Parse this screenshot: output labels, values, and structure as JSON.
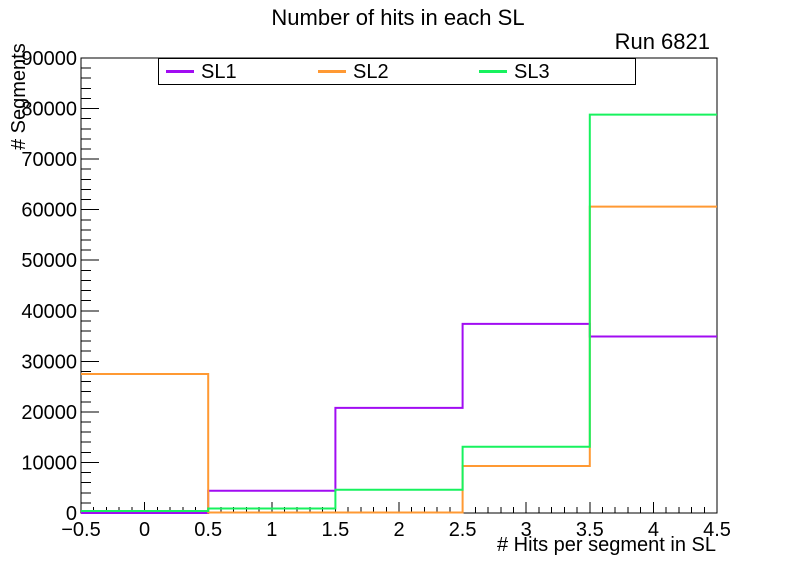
{
  "chart_data": {
    "type": "step-histogram",
    "title": "Number of hits in each SL",
    "annotation": "Run 6821",
    "xlabel": "# Hits per segment in SL",
    "ylabel": "# Segments",
    "xlim": [
      -0.5,
      4.5
    ],
    "ylim": [
      0,
      90000
    ],
    "grid": false,
    "legend_position": "top-inside",
    "bin_edges": [
      -0.5,
      0.5,
      1.5,
      2.5,
      3.5,
      4.5
    ],
    "bin_centers": [
      0,
      1,
      2,
      3,
      4
    ],
    "x_tick_labels": [
      "−0.5",
      "0",
      "0.5",
      "1",
      "1.5",
      "2",
      "2.5",
      "3",
      "3.5",
      "4",
      "4.5"
    ],
    "x_major_step": 0.5,
    "x_minor_step": 0.1,
    "y_tick_labels": [
      "0",
      "10000",
      "20000",
      "30000",
      "40000",
      "50000",
      "60000",
      "70000",
      "80000",
      "90000"
    ],
    "y_major_step": 10000,
    "y_minor_step": 2000,
    "frame_color": "#000000",
    "series": [
      {
        "name": "SL1",
        "color": "#a10cf2",
        "values": [
          0,
          4400,
          20800,
          37400,
          34900
        ]
      },
      {
        "name": "SL2",
        "color": "#ff9933",
        "values": [
          27500,
          100,
          100,
          9300,
          60600
        ]
      },
      {
        "name": "SL3",
        "color": "#17f25e",
        "values": [
          400,
          900,
          4600,
          13100,
          78800
        ]
      }
    ]
  }
}
